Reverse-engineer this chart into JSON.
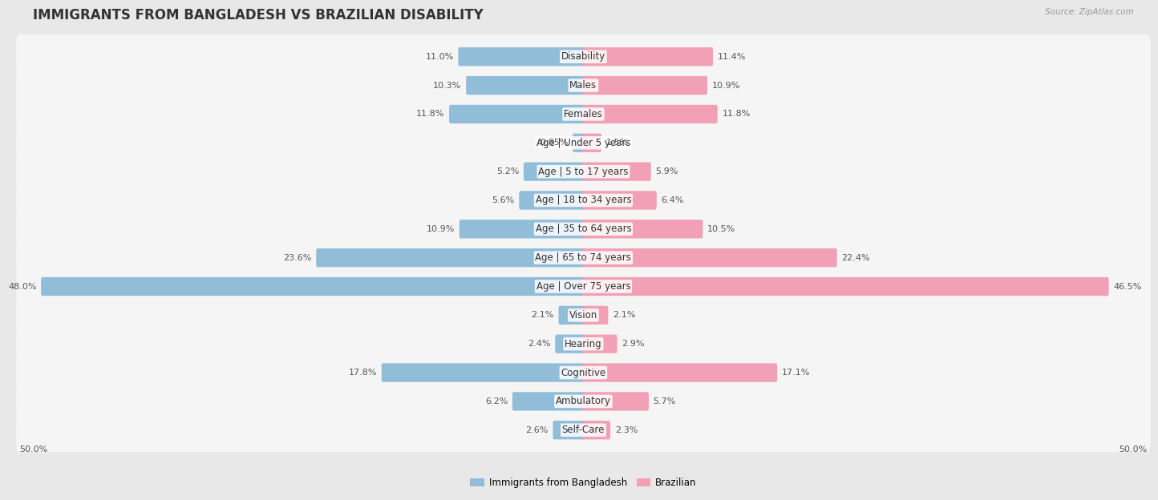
{
  "title": "IMMIGRANTS FROM BANGLADESH VS BRAZILIAN DISABILITY",
  "source": "Source: ZipAtlas.com",
  "categories": [
    "Disability",
    "Males",
    "Females",
    "Age | Under 5 years",
    "Age | 5 to 17 years",
    "Age | 18 to 34 years",
    "Age | 35 to 64 years",
    "Age | 65 to 74 years",
    "Age | Over 75 years",
    "Vision",
    "Hearing",
    "Cognitive",
    "Ambulatory",
    "Self-Care"
  ],
  "left_values": [
    11.0,
    10.3,
    11.8,
    0.85,
    5.2,
    5.6,
    10.9,
    23.6,
    48.0,
    2.1,
    2.4,
    17.8,
    6.2,
    2.6
  ],
  "right_values": [
    11.4,
    10.9,
    11.8,
    1.5,
    5.9,
    6.4,
    10.5,
    22.4,
    46.5,
    2.1,
    2.9,
    17.1,
    5.7,
    2.3
  ],
  "left_color": "#92bdd8",
  "right_color": "#f2a0b5",
  "max_val": 50.0,
  "legend_left": "Immigrants from Bangladesh",
  "legend_right": "Brazilian",
  "background_color": "#e8e8e8",
  "row_background": "#f5f5f5",
  "title_fontsize": 12,
  "label_fontsize": 8.5,
  "value_fontsize": 8
}
